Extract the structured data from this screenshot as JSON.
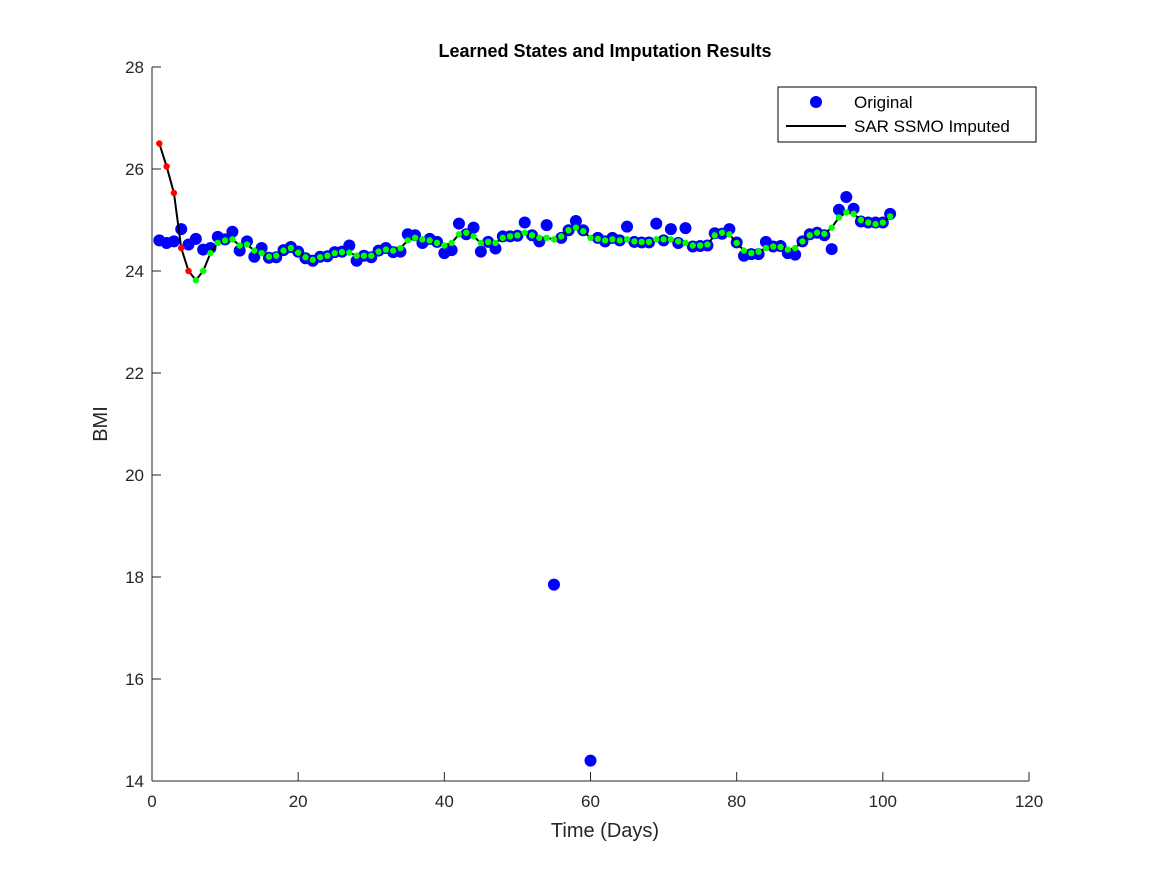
{
  "chart_data": {
    "type": "scatter",
    "title": "Learned States and Imputation Results",
    "xlabel": "Time (Days)",
    "ylabel": "BMI",
    "xlim": [
      0,
      120
    ],
    "ylim": [
      14,
      28
    ],
    "xticks": [
      0,
      20,
      40,
      60,
      80,
      100,
      120
    ],
    "yticks": [
      14,
      16,
      18,
      20,
      22,
      24,
      26,
      28
    ],
    "grid": false,
    "legend_position": "top-right",
    "colors": {
      "original": "#0000ff",
      "imputed_line": "#000000",
      "state_observed": "#00ff00",
      "state_imputed": "#ff0000"
    },
    "series": [
      {
        "name": "Original",
        "x": [
          1,
          2,
          3,
          4,
          5,
          6,
          7,
          8,
          9,
          10,
          11,
          12,
          13,
          14,
          15,
          16,
          17,
          18,
          19,
          20,
          21,
          22,
          23,
          24,
          25,
          26,
          27,
          28,
          29,
          30,
          31,
          32,
          33,
          34,
          35,
          36,
          37,
          38,
          39,
          40,
          41,
          42,
          43,
          44,
          45,
          46,
          47,
          48,
          49,
          50,
          51,
          52,
          53,
          54,
          55,
          56,
          57,
          58,
          59,
          60,
          61,
          62,
          63,
          64,
          65,
          66,
          67,
          68,
          69,
          70,
          71,
          72,
          73,
          74,
          75,
          76,
          77,
          78,
          79,
          80,
          81,
          82,
          83,
          84,
          85,
          86,
          87,
          88,
          89,
          90,
          91,
          92,
          93,
          94,
          95,
          96,
          97,
          98,
          99,
          100,
          101
        ],
        "y": [
          24.6,
          24.55,
          24.58,
          24.82,
          24.52,
          24.63,
          24.42,
          24.45,
          24.67,
          24.62,
          24.77,
          24.4,
          24.58,
          24.28,
          24.45,
          24.26,
          24.27,
          24.41,
          24.47,
          24.38,
          24.25,
          24.2,
          24.28,
          24.29,
          24.37,
          24.38,
          24.5,
          24.2,
          24.3,
          24.27,
          24.4,
          24.45,
          24.37,
          24.38,
          24.72,
          24.7,
          24.55,
          24.63,
          24.57,
          24.35,
          24.41,
          24.93,
          24.72,
          24.85,
          24.38,
          24.57,
          24.44,
          24.68,
          24.68,
          24.69,
          24.95,
          24.7,
          24.58,
          24.9,
          17.85,
          24.65,
          24.8,
          24.98,
          24.8,
          14.4,
          24.65,
          24.58,
          24.65,
          24.6,
          24.87,
          24.57,
          24.56,
          24.56,
          24.93,
          24.6,
          24.82,
          24.55,
          24.84,
          24.48,
          24.49,
          24.5,
          24.74,
          24.73,
          24.82,
          24.56,
          24.3,
          24.33,
          24.33,
          24.57,
          24.48,
          24.49,
          24.35,
          24.32,
          24.58,
          24.72,
          24.75,
          24.7,
          24.43,
          25.2,
          25.45,
          25.22,
          24.97,
          24.95,
          24.95,
          24.95,
          25.12
        ]
      },
      {
        "name": "SAR SSMO Imputed",
        "x": [
          1,
          2,
          3,
          4,
          5,
          6,
          7,
          8,
          9,
          10,
          11,
          12,
          13,
          14,
          15,
          16,
          17,
          18,
          19,
          20,
          21,
          22,
          23,
          24,
          25,
          26,
          27,
          28,
          29,
          30,
          31,
          32,
          33,
          34,
          35,
          36,
          37,
          38,
          39,
          40,
          41,
          42,
          43,
          44,
          45,
          46,
          47,
          48,
          49,
          50,
          51,
          52,
          53,
          54,
          55,
          56,
          57,
          58,
          59,
          60,
          61,
          62,
          63,
          64,
          65,
          66,
          67,
          68,
          69,
          70,
          71,
          72,
          73,
          74,
          75,
          76,
          77,
          78,
          79,
          80,
          81,
          82,
          83,
          84,
          85,
          86,
          87,
          88,
          89,
          90,
          91,
          92,
          93,
          94,
          95,
          96,
          97,
          98,
          99,
          100,
          101
        ],
        "y": [
          26.5,
          26.05,
          25.53,
          24.45,
          24.0,
          23.82,
          24.0,
          24.35,
          24.55,
          24.6,
          24.62,
          24.5,
          24.52,
          24.4,
          24.35,
          24.28,
          24.3,
          24.4,
          24.45,
          24.36,
          24.27,
          24.22,
          24.27,
          24.3,
          24.35,
          24.37,
          24.36,
          24.3,
          24.3,
          24.3,
          24.38,
          24.42,
          24.4,
          24.45,
          24.6,
          24.65,
          24.62,
          24.6,
          24.55,
          24.5,
          24.55,
          24.72,
          24.75,
          24.68,
          24.55,
          24.57,
          24.55,
          24.65,
          24.68,
          24.7,
          24.75,
          24.7,
          24.65,
          24.65,
          24.62,
          24.68,
          24.8,
          24.85,
          24.78,
          24.65,
          24.63,
          24.6,
          24.62,
          24.6,
          24.62,
          24.58,
          24.57,
          24.57,
          24.62,
          24.62,
          24.62,
          24.58,
          24.55,
          24.5,
          24.5,
          24.52,
          24.7,
          24.75,
          24.72,
          24.55,
          24.4,
          24.35,
          24.38,
          24.45,
          24.48,
          24.47,
          24.42,
          24.45,
          24.58,
          24.7,
          24.75,
          24.73,
          24.85,
          25.05,
          25.15,
          25.12,
          25.0,
          24.95,
          24.92,
          24.95,
          25.07
        ],
        "imputed_days": [
          1,
          2,
          3,
          4,
          5
        ]
      }
    ]
  }
}
